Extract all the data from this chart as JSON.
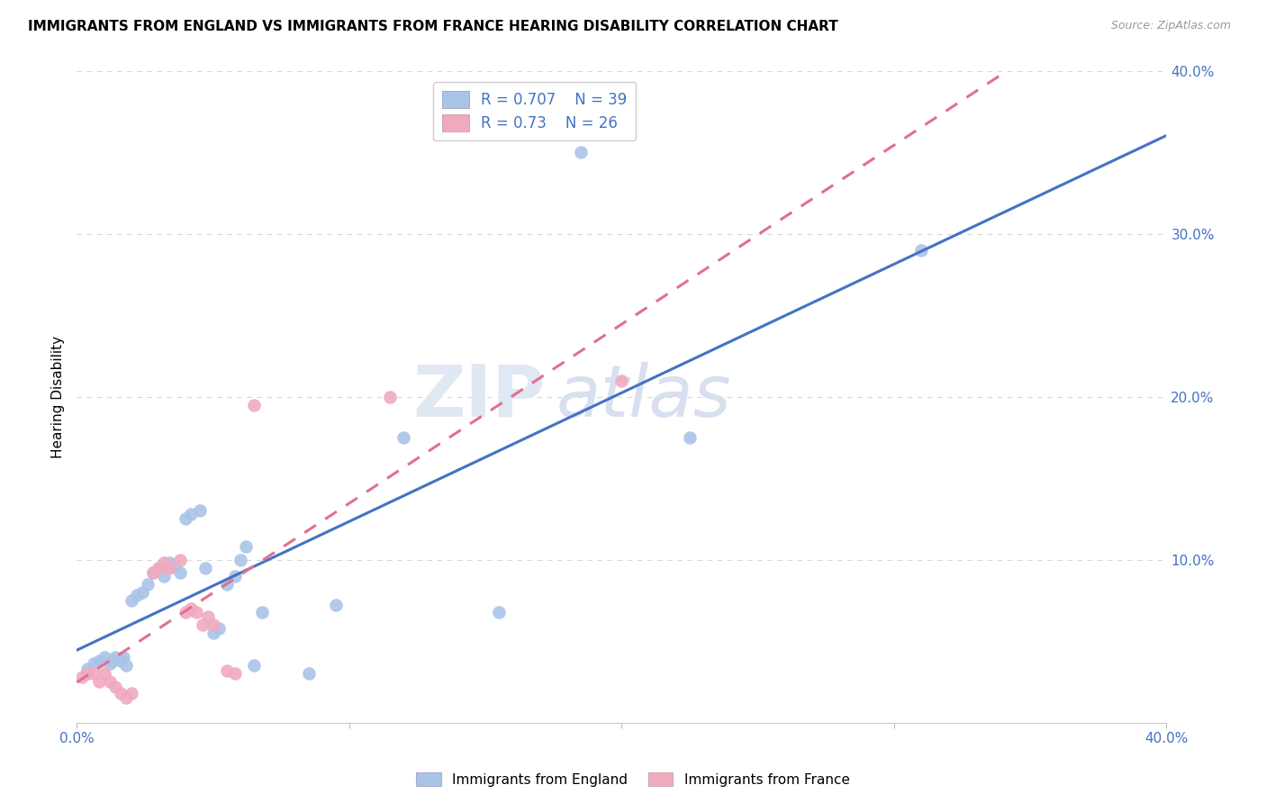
{
  "title": "IMMIGRANTS FROM ENGLAND VS IMMIGRANTS FROM FRANCE HEARING DISABILITY CORRELATION CHART",
  "source": "Source: ZipAtlas.com",
  "ylabel": "Hearing Disability",
  "R_england": 0.707,
  "N_england": 39,
  "R_france": 0.73,
  "N_france": 26,
  "england_color": "#aac4e8",
  "england_line_color": "#4472c4",
  "france_color": "#f0aac0",
  "france_line_color": "#e07090",
  "england_points": [
    [
      0.004,
      0.033
    ],
    [
      0.006,
      0.036
    ],
    [
      0.008,
      0.038
    ],
    [
      0.01,
      0.04
    ],
    [
      0.012,
      0.036
    ],
    [
      0.013,
      0.038
    ],
    [
      0.014,
      0.04
    ],
    [
      0.016,
      0.038
    ],
    [
      0.017,
      0.04
    ],
    [
      0.018,
      0.035
    ],
    [
      0.02,
      0.075
    ],
    [
      0.022,
      0.078
    ],
    [
      0.024,
      0.08
    ],
    [
      0.026,
      0.085
    ],
    [
      0.028,
      0.092
    ],
    [
      0.03,
      0.095
    ],
    [
      0.032,
      0.09
    ],
    [
      0.034,
      0.098
    ],
    [
      0.036,
      0.096
    ],
    [
      0.038,
      0.092
    ],
    [
      0.04,
      0.125
    ],
    [
      0.042,
      0.128
    ],
    [
      0.045,
      0.13
    ],
    [
      0.047,
      0.095
    ],
    [
      0.05,
      0.055
    ],
    [
      0.052,
      0.058
    ],
    [
      0.055,
      0.085
    ],
    [
      0.058,
      0.09
    ],
    [
      0.06,
      0.1
    ],
    [
      0.062,
      0.108
    ],
    [
      0.065,
      0.035
    ],
    [
      0.068,
      0.068
    ],
    [
      0.085,
      0.03
    ],
    [
      0.095,
      0.072
    ],
    [
      0.12,
      0.175
    ],
    [
      0.155,
      0.068
    ],
    [
      0.185,
      0.35
    ],
    [
      0.225,
      0.175
    ],
    [
      0.31,
      0.29
    ]
  ],
  "france_points": [
    [
      0.002,
      0.028
    ],
    [
      0.004,
      0.03
    ],
    [
      0.006,
      0.03
    ],
    [
      0.008,
      0.025
    ],
    [
      0.01,
      0.03
    ],
    [
      0.012,
      0.025
    ],
    [
      0.014,
      0.022
    ],
    [
      0.016,
      0.018
    ],
    [
      0.018,
      0.015
    ],
    [
      0.02,
      0.018
    ],
    [
      0.028,
      0.092
    ],
    [
      0.03,
      0.095
    ],
    [
      0.032,
      0.098
    ],
    [
      0.034,
      0.095
    ],
    [
      0.038,
      0.1
    ],
    [
      0.04,
      0.068
    ],
    [
      0.042,
      0.07
    ],
    [
      0.044,
      0.068
    ],
    [
      0.046,
      0.06
    ],
    [
      0.048,
      0.065
    ],
    [
      0.05,
      0.06
    ],
    [
      0.055,
      0.032
    ],
    [
      0.058,
      0.03
    ],
    [
      0.065,
      0.195
    ],
    [
      0.115,
      0.2
    ],
    [
      0.2,
      0.21
    ]
  ],
  "watermark_zip": "ZIP",
  "watermark_atlas": "atlas",
  "xlim": [
    0.0,
    0.4
  ],
  "ylim": [
    0.0,
    0.4
  ],
  "yticks": [
    0.0,
    0.1,
    0.2,
    0.3,
    0.4
  ],
  "xticks": [
    0.0,
    0.1,
    0.2,
    0.3,
    0.4
  ],
  "grid_color": "#d8d8d8",
  "background_color": "#ffffff",
  "tick_label_color": "#4472c4",
  "legend_text_color": "#4472c4",
  "title_fontsize": 11,
  "source_color": "#999999"
}
